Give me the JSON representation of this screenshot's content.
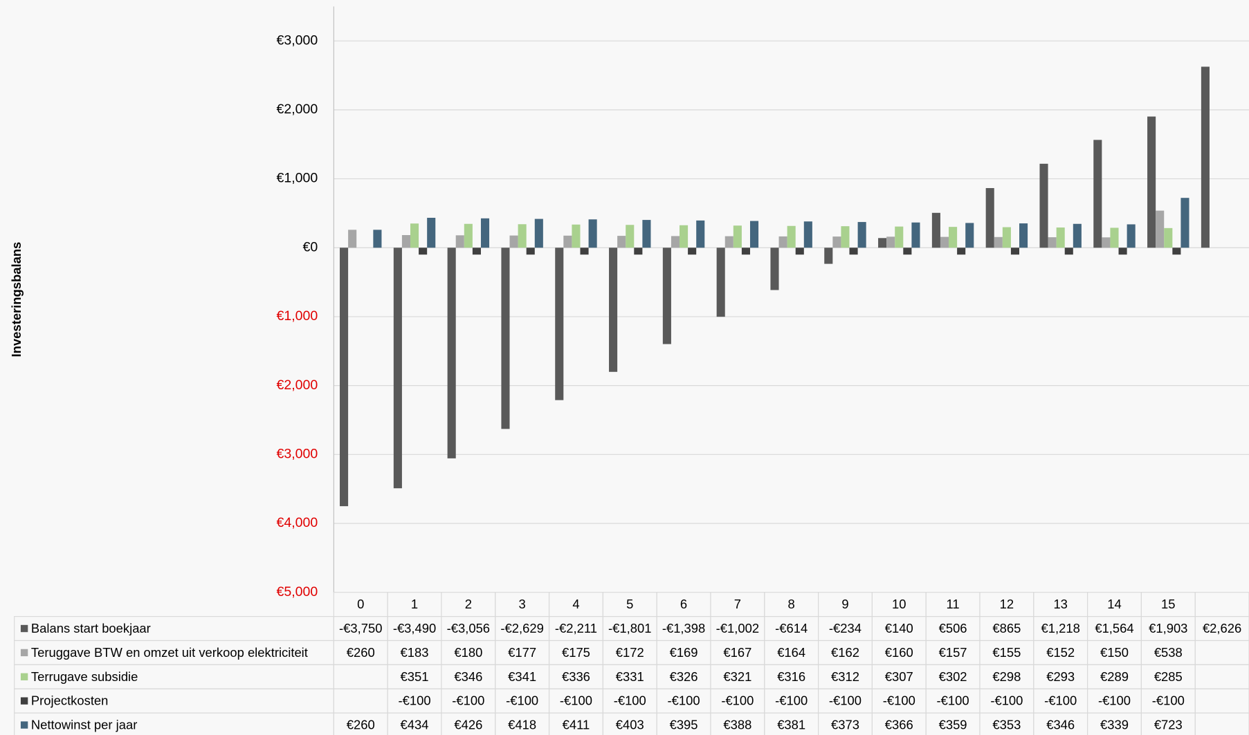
{
  "chart_data": {
    "type": "bar",
    "y_axis_label": "Investeringsbalans",
    "categories": [
      "0",
      "1",
      "2",
      "3",
      "4",
      "5",
      "6",
      "7",
      "8",
      "9",
      "10",
      "11",
      "12",
      "13",
      "14",
      "15",
      null
    ],
    "series": [
      {
        "name": "Balans start boekjaar",
        "color": "#595959",
        "values": [
          -3750,
          -3490,
          -3056,
          -2629,
          -2211,
          -1801,
          -1398,
          -1002,
          -614,
          -234,
          140,
          506,
          865,
          1218,
          1564,
          1903,
          2626
        ],
        "value_labels": [
          "-€3,750",
          "-€3,490",
          "-€3,056",
          "-€2,629",
          "-€2,211",
          "-€1,801",
          "-€1,398",
          "-€1,002",
          "-€614",
          "-€234",
          "€140",
          "€506",
          "€865",
          "€1,218",
          "€1,564",
          "€1,903",
          "€2,626"
        ]
      },
      {
        "name": "Teruggave BTW en omzet uit verkoop elektriciteit",
        "color": "#a6a6a6",
        "values": [
          260,
          183,
          180,
          177,
          175,
          172,
          169,
          167,
          164,
          162,
          160,
          157,
          155,
          152,
          150,
          538,
          null
        ],
        "value_labels": [
          "€260",
          "€183",
          "€180",
          "€177",
          "€175",
          "€172",
          "€169",
          "€167",
          "€164",
          "€162",
          "€160",
          "€157",
          "€155",
          "€152",
          "€150",
          "€538",
          null
        ]
      },
      {
        "name": "Terrugave subsidie",
        "color": "#a9d18e",
        "values": [
          null,
          351,
          346,
          341,
          336,
          331,
          326,
          321,
          316,
          312,
          307,
          302,
          298,
          293,
          289,
          285,
          null
        ],
        "value_labels": [
          null,
          "€351",
          "€346",
          "€341",
          "€336",
          "€331",
          "€326",
          "€321",
          "€316",
          "€312",
          "€307",
          "€302",
          "€298",
          "€293",
          "€289",
          "€285",
          null
        ]
      },
      {
        "name": "Projectkosten",
        "color": "#404040",
        "values": [
          null,
          -100,
          -100,
          -100,
          -100,
          -100,
          -100,
          -100,
          -100,
          -100,
          -100,
          -100,
          -100,
          -100,
          -100,
          -100,
          null
        ],
        "value_labels": [
          null,
          "-€100",
          "-€100",
          "-€100",
          "-€100",
          "-€100",
          "-€100",
          "-€100",
          "-€100",
          "-€100",
          "-€100",
          "-€100",
          "-€100",
          "-€100",
          "-€100",
          "-€100",
          null
        ]
      },
      {
        "name": "Nettowinst per jaar",
        "color": "#44667e",
        "values": [
          260,
          434,
          426,
          418,
          411,
          403,
          395,
          388,
          381,
          373,
          366,
          359,
          353,
          346,
          339,
          723,
          null
        ],
        "value_labels": [
          "€260",
          "€434",
          "€426",
          "€418",
          "€411",
          "€403",
          "€395",
          "€388",
          "€381",
          "€373",
          "€366",
          "€359",
          "€353",
          "€346",
          "€339",
          "€723",
          null
        ]
      }
    ],
    "ylim": [
      -5000,
      3500
    ],
    "yticks": [
      {
        "value": -5000,
        "label": "€5,000"
      },
      {
        "value": -4000,
        "label": "€4,000"
      },
      {
        "value": -3000,
        "label": "€3,000"
      },
      {
        "value": -2000,
        "label": "€2,000"
      },
      {
        "value": -1000,
        "label": "€1,000"
      },
      {
        "value": 0,
        "label": "€0"
      },
      {
        "value": 1000,
        "label": "€1,000"
      },
      {
        "value": 2000,
        "label": "€2,000"
      },
      {
        "value": 3000,
        "label": "€3,000"
      }
    ],
    "grid": true,
    "negative_tick_color": "#e00000"
  }
}
